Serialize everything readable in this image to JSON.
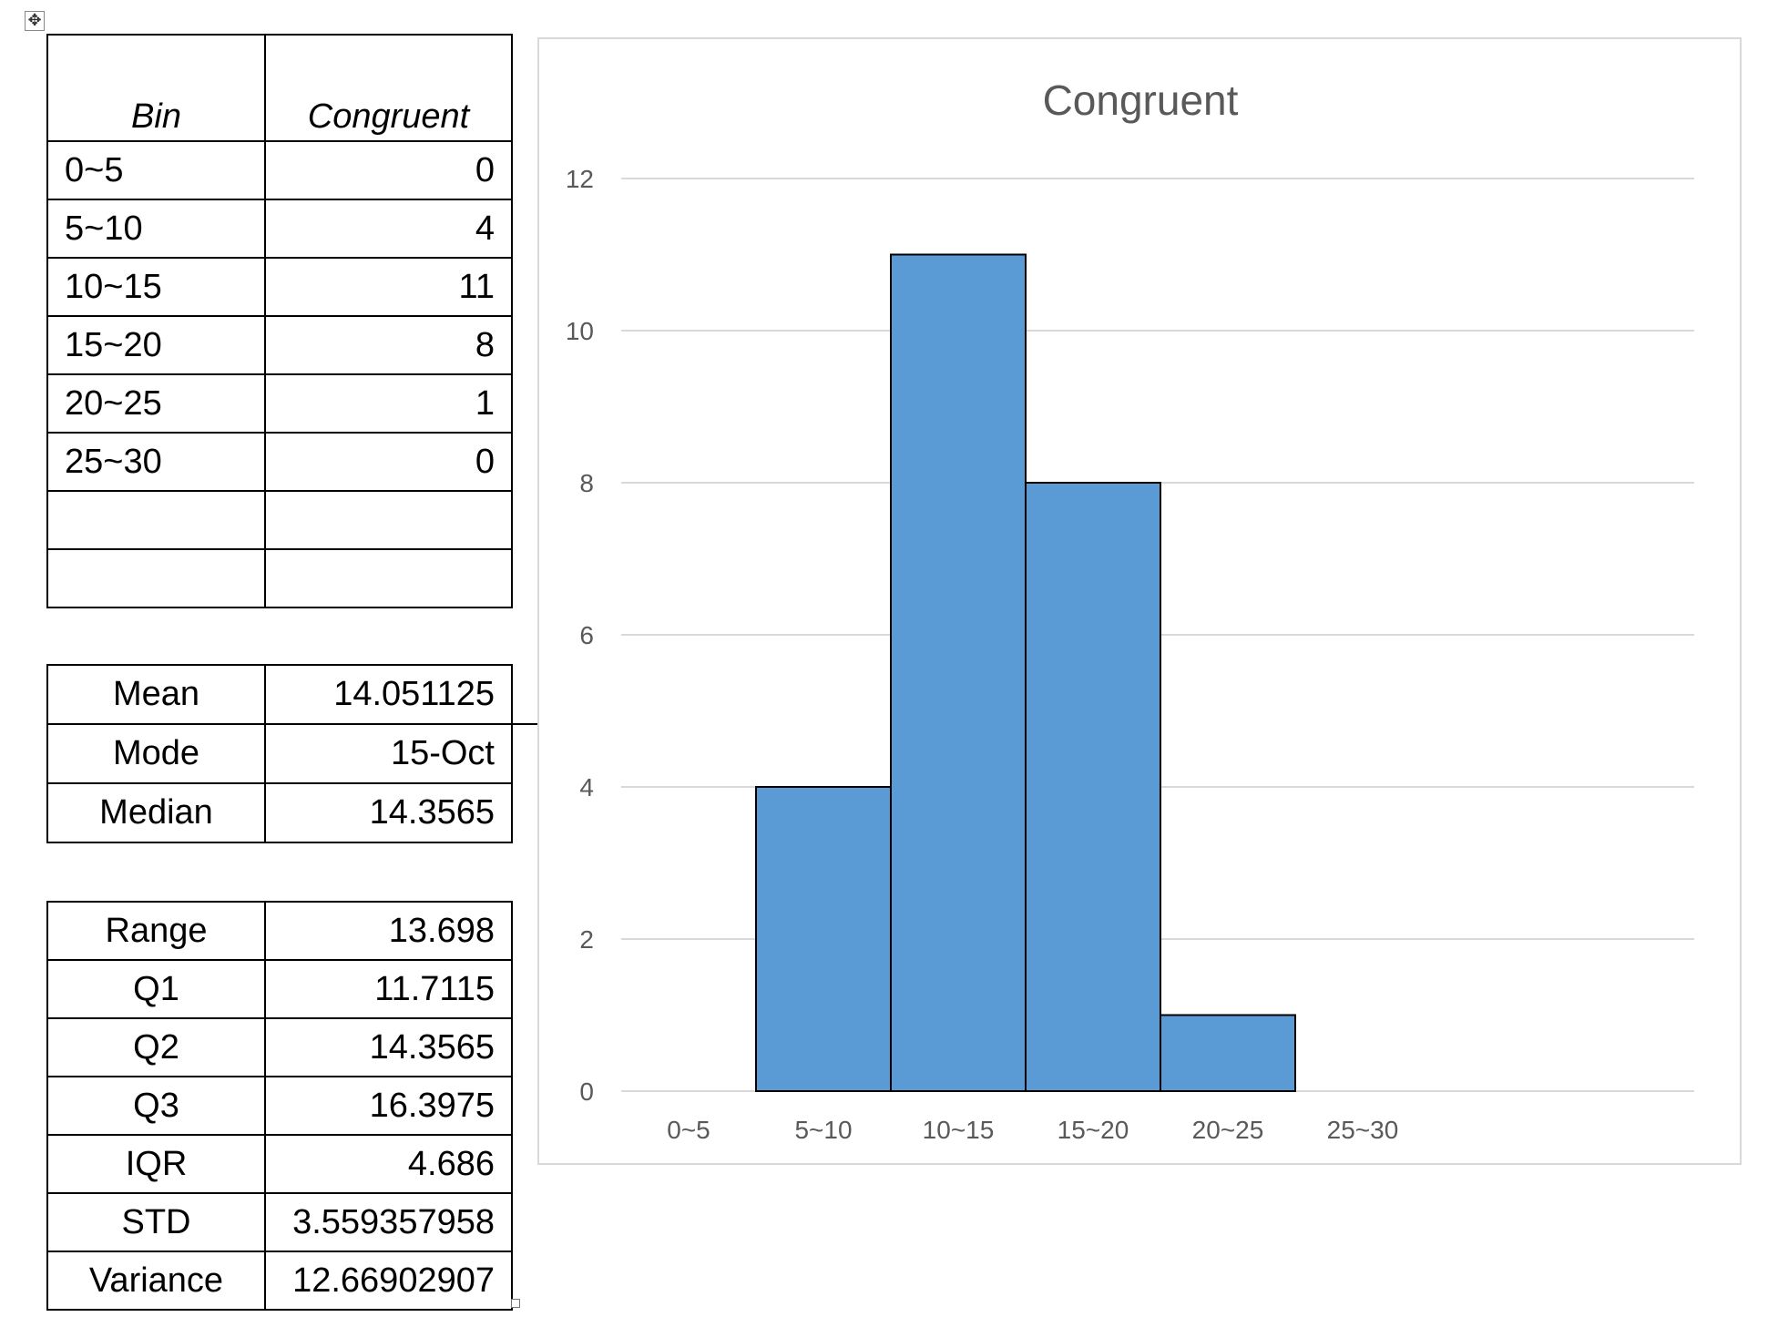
{
  "frequency_table": {
    "header": {
      "bin": "Bin",
      "count": "Congruent"
    },
    "rows": [
      {
        "bin": "0~5",
        "count": "0"
      },
      {
        "bin": "5~10",
        "count": "4"
      },
      {
        "bin": "10~15",
        "count": "11"
      },
      {
        "bin": "15~20",
        "count": "8"
      },
      {
        "bin": "20~25",
        "count": "1"
      },
      {
        "bin": "25~30",
        "count": "0"
      },
      {
        "bin": "",
        "count": ""
      },
      {
        "bin": "",
        "count": ""
      }
    ]
  },
  "central_tendency": [
    {
      "label": "Mean",
      "value": "14.051125"
    },
    {
      "label": "Mode",
      "value": "15-Oct"
    },
    {
      "label": "Median",
      "value": "14.3565"
    }
  ],
  "spread": [
    {
      "label": "Range",
      "value": "13.698"
    },
    {
      "label": "Q1",
      "value": "11.7115"
    },
    {
      "label": "Q2",
      "value": "14.3565"
    },
    {
      "label": "Q3",
      "value": "16.3975"
    },
    {
      "label": "IQR",
      "value": "4.686"
    },
    {
      "label": "STD",
      "value": "3.559357958"
    },
    {
      "label": "Variance",
      "value": "12.66902907"
    }
  ],
  "chart_data": {
    "type": "bar",
    "title": "Congruent",
    "categories": [
      "0~5",
      "5~10",
      "10~15",
      "15~20",
      "20~25",
      "25~30"
    ],
    "values": [
      0,
      4,
      11,
      8,
      1,
      0
    ],
    "ylim": [
      0,
      12
    ],
    "yticks": [
      0,
      2,
      4,
      6,
      8,
      10,
      12
    ],
    "grid": true,
    "legend": "none",
    "bar_color": "#5b9bd5",
    "bar_edge_color": "#000000",
    "gridline_color": "#d9d9d9"
  }
}
